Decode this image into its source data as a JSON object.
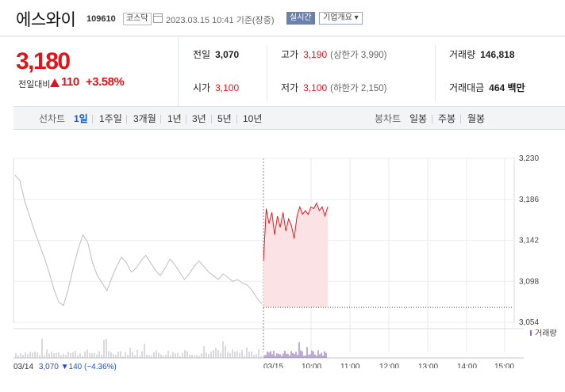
{
  "header": {
    "name": "에스와이",
    "code": "109610",
    "market": "코스닥",
    "datetime": "2023.03.15 10:41  기준(장중)",
    "realtime_button": "실시간",
    "company_button": "기업개요 ▾"
  },
  "quote": {
    "price": "3,180",
    "change_label": "전일대비",
    "change": "110",
    "change_pct": "+3.58%",
    "up_color": "#e0151b"
  },
  "stats": {
    "prev_label": "전일",
    "prev": "3,070",
    "open_label": "시가",
    "open": "3,100",
    "high_label": "고가",
    "high": "3,190",
    "upper_limit": "(상한가 3,990)",
    "low_label": "저가",
    "low": "3,100",
    "lower_limit": "(하한가 2,150)",
    "volume_label": "거래량",
    "volume": "146,818",
    "amount_label": "거래대금",
    "amount": "464 백만"
  },
  "tabs": {
    "line_label": "선차트",
    "line_items": [
      "1일",
      "1주일",
      "3개월",
      "1년",
      "3년",
      "5년",
      "10년"
    ],
    "active_index": 0,
    "candle_label": "봉차트",
    "candle_items": [
      "일봉",
      "주봉",
      "월봉"
    ]
  },
  "chart_data": {
    "type": "line",
    "y_ticks": [
      "3,230",
      "3,186",
      "3,142",
      "3,098",
      "3,054"
    ],
    "ylim": [
      3054,
      3230
    ],
    "x_ticks": [
      "03/14",
      "03/15",
      "10:00",
      "11:00",
      "12:00",
      "13:00",
      "14:00",
      "15:00"
    ],
    "prev_close": 3070,
    "series": [
      {
        "values_prev_day": [
          3212,
          3206,
          3184,
          3168,
          3152,
          3138,
          3124,
          3108,
          3090,
          3076,
          3072,
          3090,
          3112,
          3132,
          3148,
          3140,
          3118,
          3104,
          3096,
          3088,
          3102,
          3114,
          3124,
          3118,
          3108,
          3112,
          3120,
          3126,
          3118,
          3110,
          3104,
          3112,
          3122,
          3116,
          3108,
          3100,
          3106,
          3114,
          3120,
          3114,
          3108,
          3104,
          3100,
          3106,
          3102,
          3098,
          3100,
          3096,
          3094,
          3088,
          3080,
          3074
        ],
        "values_today": [
          3120,
          3176,
          3160,
          3172,
          3148,
          3168,
          3156,
          3172,
          3152,
          3165,
          3158,
          3144,
          3168,
          3178,
          3170,
          3174,
          3170,
          3178,
          3176,
          3182,
          3174,
          3178,
          3168,
          3178
        ],
        "today_color": "#e21a22"
      }
    ],
    "volume_label": "거래량"
  },
  "footer": {
    "date": "03/14",
    "close": "3,070",
    "change": "▼140",
    "pct": "(−4.36%)"
  }
}
